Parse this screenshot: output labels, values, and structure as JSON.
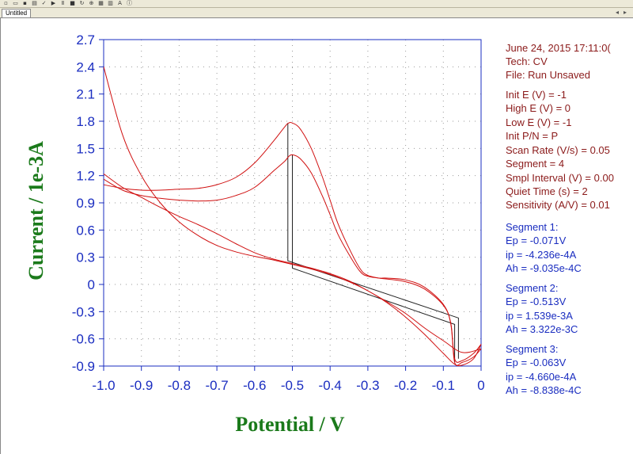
{
  "window": {
    "tab_label": "Untitled"
  },
  "toolbar": {
    "icons": [
      "new-icon",
      "open-icon",
      "save-icon",
      "print-icon",
      "check-icon",
      "play-icon",
      "pause-icon",
      "stop-icon",
      "redo-icon",
      "zoom-icon",
      "graph-icon",
      "color-icon",
      "text-icon",
      "info-icon"
    ]
  },
  "info_panel": {
    "header": [
      "June 24, 2015    17:11:0(",
      "Tech: CV",
      "File: Run Unsaved"
    ],
    "params": [
      "Init E (V) = -1",
      "High E (V) = 0",
      "Low E (V) = -1",
      "Init P/N = P",
      "Scan Rate (V/s) = 0.05",
      "Segment = 4",
      "Smpl Interval (V) = 0.00",
      "Quiet Time (s) = 2",
      "Sensitivity (A/V) = 0.01"
    ],
    "segments": [
      {
        "title": "Segment 1:",
        "ep": "Ep = -0.071V",
        "ip": "ip = -4.236e-4A",
        "ah": "Ah = -9.035e-4C"
      },
      {
        "title": "Segment 2:",
        "ep": "Ep = -0.513V",
        "ip": "ip = 1.539e-3A",
        "ah": "Ah = 3.322e-3C"
      },
      {
        "title": "Segment 3:",
        "ep": "Ep = -0.063V",
        "ip": "ip = -4.660e-4A",
        "ah": "Ah = -8.838e-4C"
      }
    ]
  },
  "colors": {
    "axis": "#1a2dc0",
    "curve": "#d01010",
    "baseline": "#222222",
    "label": "#1b7a1b",
    "info_dark": "#8b1a1a",
    "info_blue": "#1a2dc0"
  },
  "chart_data": {
    "type": "line",
    "xlabel": "Potential / V",
    "ylabel": "Current / 1e-3A",
    "xlim": [
      -1.0,
      0.0
    ],
    "ylim": [
      -0.9,
      2.7
    ],
    "x_ticks": [
      "-1.0",
      "-0.9",
      "-0.8",
      "-0.7",
      "-0.6",
      "-0.5",
      "-0.4",
      "-0.3",
      "-0.2",
      "-0.1",
      "0"
    ],
    "y_ticks": [
      "2.7",
      "2.4",
      "2.1",
      "1.8",
      "1.5",
      "1.2",
      "0.9",
      "0.6",
      "0.3",
      "0",
      "-0.3",
      "-0.6",
      "-0.9"
    ],
    "grid": true,
    "series": [
      {
        "x": [
          -1.0,
          -0.95,
          -0.9,
          -0.85,
          -0.8,
          -0.75,
          -0.7,
          -0.65,
          -0.6,
          -0.55,
          -0.52,
          -0.51,
          -0.5,
          -0.48,
          -0.45,
          -0.42,
          -0.4,
          -0.38,
          -0.35,
          -0.32,
          -0.3,
          -0.27,
          -0.25,
          -0.2,
          -0.15,
          -0.1,
          -0.08,
          -0.07,
          -0.05,
          -0.02,
          0.0
        ],
        "y": [
          1.1,
          1.06,
          1.04,
          1.04,
          1.05,
          1.06,
          1.1,
          1.18,
          1.34,
          1.58,
          1.74,
          1.78,
          1.78,
          1.72,
          1.5,
          1.18,
          0.93,
          0.68,
          0.4,
          0.17,
          0.1,
          0.07,
          0.06,
          0.03,
          -0.05,
          -0.23,
          -0.43,
          -0.82,
          -0.84,
          -0.76,
          -0.66
        ]
      },
      {
        "x": [
          -1.0,
          -0.95,
          -0.9,
          -0.85,
          -0.8,
          -0.75,
          -0.7,
          -0.65,
          -0.6,
          -0.55,
          -0.52,
          -0.51,
          -0.5,
          -0.48,
          -0.45,
          -0.42,
          -0.4,
          -0.38,
          -0.35,
          -0.32,
          -0.3,
          -0.27,
          -0.25,
          -0.2,
          -0.15,
          -0.1,
          -0.08,
          -0.07,
          -0.05,
          -0.02,
          0.0
        ],
        "y": [
          1.16,
          1.04,
          0.98,
          0.95,
          0.93,
          0.92,
          0.93,
          0.98,
          1.07,
          1.25,
          1.36,
          1.41,
          1.43,
          1.39,
          1.23,
          0.97,
          0.77,
          0.56,
          0.33,
          0.14,
          0.09,
          0.07,
          0.07,
          0.05,
          -0.03,
          -0.22,
          -0.44,
          -0.86,
          -0.86,
          -0.8,
          -0.71
        ]
      },
      {
        "x": [
          0.0,
          -0.02,
          -0.05,
          -0.07,
          -0.1,
          -0.15,
          -0.2,
          -0.25,
          -0.3,
          -0.35,
          -0.4,
          -0.45,
          -0.5,
          -0.55,
          -0.6,
          -0.65,
          -0.7,
          -0.75,
          -0.8,
          -0.85,
          -0.9,
          -0.95,
          -1.0
        ],
        "y": [
          -0.66,
          -0.82,
          -0.89,
          -0.88,
          -0.76,
          -0.55,
          -0.36,
          -0.2,
          -0.07,
          0.03,
          0.11,
          0.17,
          0.22,
          0.27,
          0.31,
          0.36,
          0.43,
          0.54,
          0.69,
          0.9,
          1.2,
          1.65,
          2.4
        ]
      },
      {
        "x": [
          0.0,
          -0.05,
          -0.1,
          -0.15,
          -0.2,
          -0.25,
          -0.3,
          -0.35,
          -0.4,
          -0.45,
          -0.5,
          -0.55,
          -0.6,
          -0.65,
          -0.7,
          -0.75,
          -0.8,
          -0.85,
          -0.9,
          -0.95,
          -1.0
        ],
        "y": [
          -0.71,
          -0.75,
          -0.62,
          -0.48,
          -0.32,
          -0.19,
          -0.07,
          0.04,
          0.12,
          0.18,
          0.23,
          0.28,
          0.35,
          0.45,
          0.56,
          0.66,
          0.75,
          0.85,
          0.96,
          1.07,
          1.22
        ]
      }
    ],
    "baselines": [
      {
        "x": [
          -0.512,
          -0.512,
          -0.06,
          -0.06
        ],
        "y": [
          1.78,
          0.26,
          -0.37,
          -0.82
        ]
      },
      {
        "x": [
          -0.5,
          -0.5,
          -0.07,
          -0.07
        ],
        "y": [
          1.43,
          0.18,
          -0.44,
          -0.86
        ]
      }
    ]
  }
}
